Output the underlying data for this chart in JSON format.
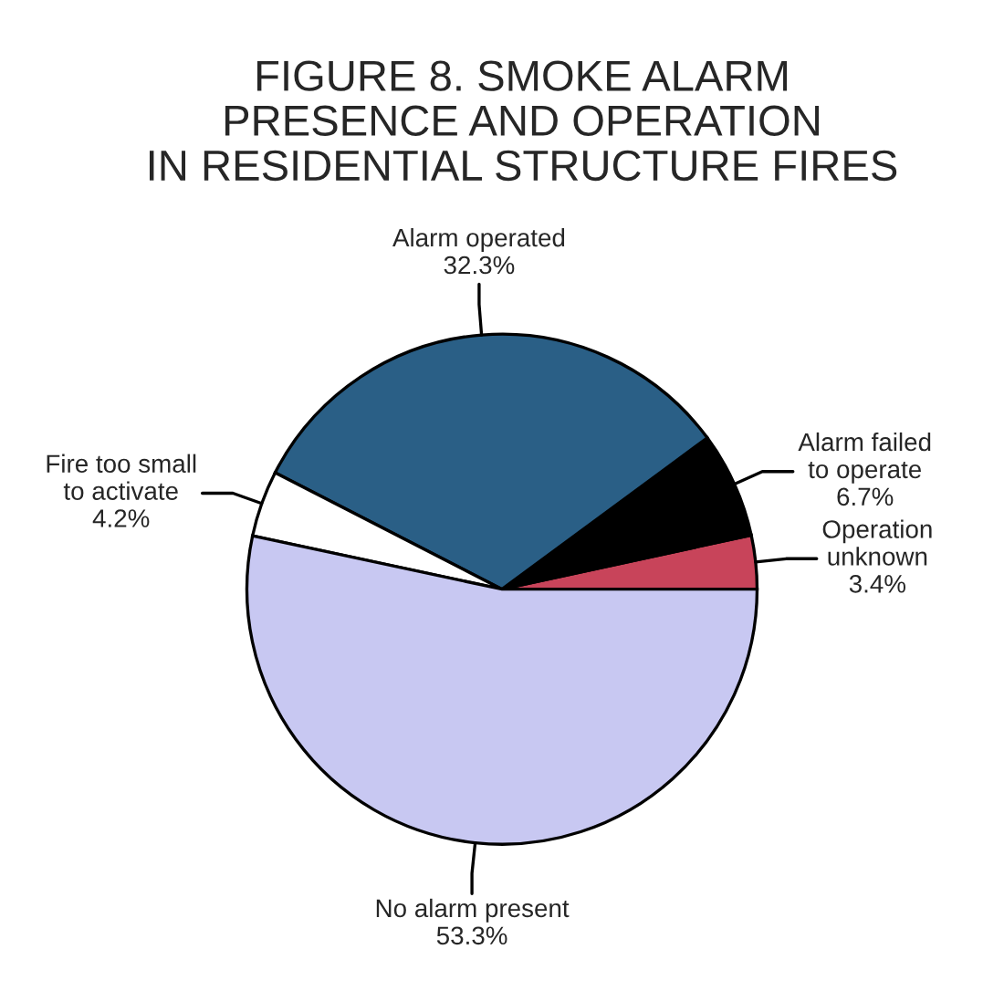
{
  "chart_data": {
    "type": "pie",
    "title": "FIGURE 8. SMOKE ALARM\nPRESENCE AND OPERATION\nIN RESIDENTIAL STRUCTURE FIRES",
    "categories": [
      "Operation\nunknown",
      "Alarm failed\nto operate",
      "Alarm operated",
      "Fire too small\nto activate",
      "No alarm present"
    ],
    "values": [
      3.4,
      6.7,
      32.3,
      4.2,
      53.3
    ],
    "value_labels": [
      "3.4%",
      "6.7%",
      "32.3%",
      "4.2%",
      "53.3%"
    ],
    "colors": [
      "#c8445a",
      "#000000",
      "#2a5f86",
      "#ffffff",
      "#c8c8f2"
    ]
  }
}
